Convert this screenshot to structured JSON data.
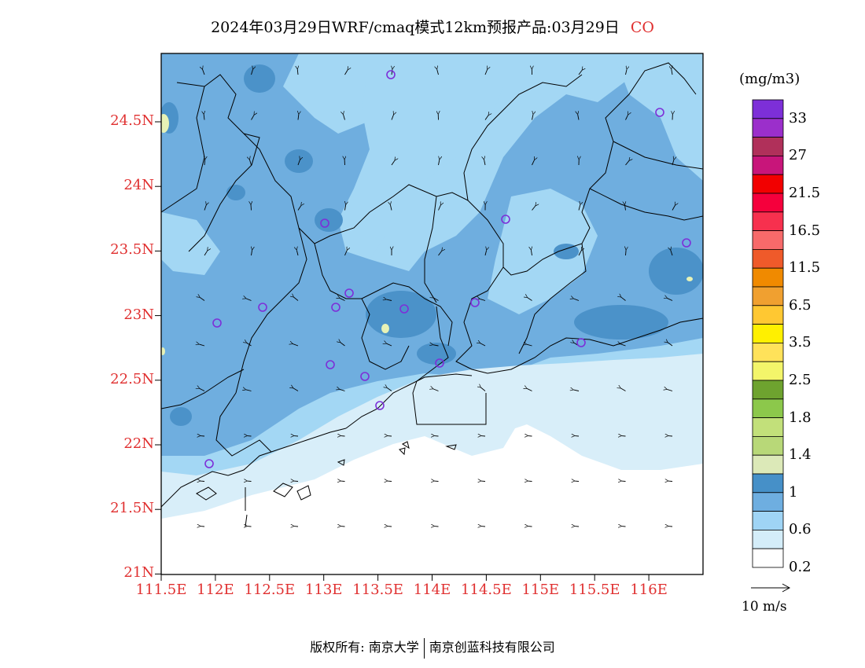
{
  "title": {
    "main": "2024年03月29日WRF/cmaq模式12km预报产品:03月29日",
    "species": "CO"
  },
  "lat_ticks": [
    "24.5N",
    "24N",
    "23.5N",
    "23N",
    "22.5N",
    "22N",
    "21.5N",
    "21N"
  ],
  "lon_ticks": [
    "111.5E",
    "112E",
    "112.5E",
    "113E",
    "113.5E",
    "114E",
    "114.5E",
    "115E",
    "115.5E",
    "116E"
  ],
  "colorbar": {
    "unit": "(mg/m3)",
    "labels": [
      "33",
      "27",
      "21.5",
      "16.5",
      "11.5",
      "6.5",
      "3.5",
      "2.5",
      "1.8",
      "1.4",
      "1",
      "0.6",
      "0.2"
    ],
    "colors": [
      "#7d2fd8",
      "#9b2fcb",
      "#b0305a",
      "#c8157a",
      "#f20000",
      "#f5003c",
      "#f7304e",
      "#f76a6a",
      "#ef5a2a",
      "#f08a00",
      "#f0a030",
      "#ffc832",
      "#fff000",
      "#ffe25a",
      "#f3f56a",
      "#6ea32f",
      "#8cc84b",
      "#c2e07a",
      "#b8d878",
      "#dce9b8",
      "#4690c8",
      "#6eaee0",
      "#9fd4f5",
      "#d4edf9",
      "#ffffff"
    ]
  },
  "legend_colors": {
    "deep": "#4b92c9",
    "mid": "#6faedf",
    "light": "#a3d7f4",
    "pale": "#d8eef9",
    "yellow": "#e7f2b6"
  },
  "wind_reference": {
    "label": "10 m/s"
  },
  "copyright": {
    "left": "版权所有: 南京大学",
    "right": "南京创蓝科技有限公司"
  },
  "station_count": 16
}
